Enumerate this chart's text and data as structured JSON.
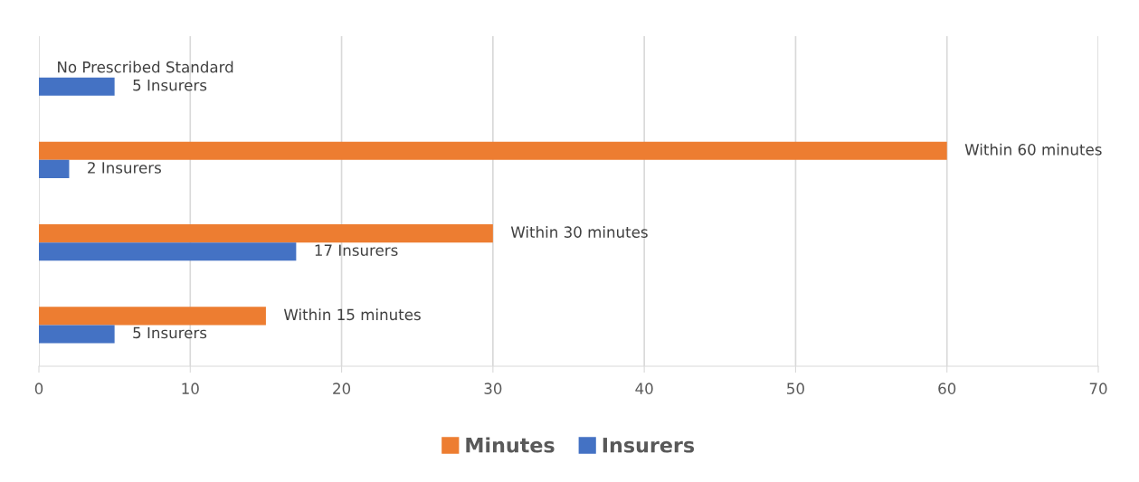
{
  "chart_data": {
    "type": "bar",
    "orientation": "horizontal",
    "categories": [
      null,
      null,
      null,
      null
    ],
    "series": [
      {
        "name": "Minutes",
        "color": "#ed7d31",
        "values": [
          0,
          60,
          30,
          15
        ],
        "value_labels": [
          "No Prescribed Standard",
          "Within 60 minutes",
          "Within 30 minutes",
          "Within 15 minutes"
        ]
      },
      {
        "name": "Insurers",
        "color": "#4472c4",
        "values": [
          5,
          2,
          17,
          5
        ],
        "value_labels": [
          "5 Insurers",
          "2 Insurers",
          "17 Insurers",
          "5 Insurers"
        ]
      }
    ],
    "xlim": [
      0,
      70
    ],
    "xticks": [
      0,
      10,
      20,
      30,
      40,
      50,
      60,
      70
    ],
    "grid": "x",
    "legend": "bottom"
  }
}
